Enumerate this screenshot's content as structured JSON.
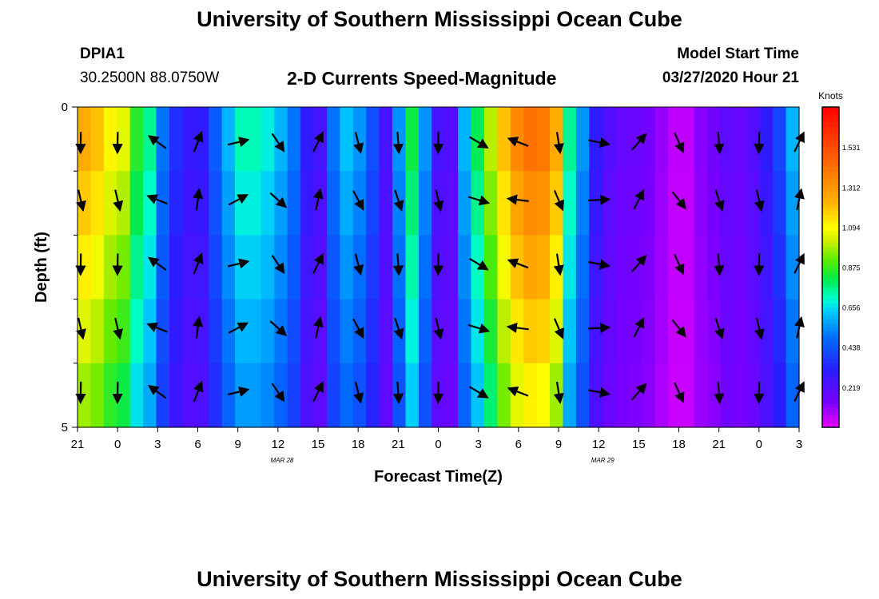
{
  "header": {
    "title_top": "University of Southern Mississippi Ocean Cube",
    "title_bottom": "University of Southern Mississippi Ocean Cube",
    "station_id": "DPIA1",
    "station_coords": "30.2500N 88.0750W",
    "plot_title": "2-D Currents Speed-Magnitude",
    "model_start_label": "Model Start Time",
    "model_start_value": "03/27/2020 Hour 21"
  },
  "chart_data": {
    "type": "heatmap",
    "title": "2-D Currents Speed-Magnitude",
    "xlabel": "Forecast Time(Z)",
    "ylabel": "Depth (ft)",
    "x_ticks": [
      "21",
      "0",
      "3",
      "6",
      "9",
      "12",
      "15",
      "18",
      "21",
      "0",
      "3",
      "6",
      "9",
      "12",
      "15",
      "18",
      "21",
      "0",
      "3"
    ],
    "x_date_labels": [
      {
        "after_tick_index": 5,
        "text": "MAR 28"
      },
      {
        "after_tick_index": 13,
        "text": "MAR 29"
      }
    ],
    "y_ticks": [
      "0",
      "5"
    ],
    "ylim": [
      0,
      5
    ],
    "n_time_steps": 55,
    "hours_per_step": 1,
    "n_depth_layers": 5,
    "speed_profile_knots": [
      1.25,
      1.2,
      1.1,
      1.05,
      0.85,
      0.75,
      0.5,
      0.35,
      0.28,
      0.3,
      0.45,
      0.6,
      0.72,
      0.72,
      0.68,
      0.6,
      0.5,
      0.3,
      0.25,
      0.5,
      0.62,
      0.55,
      0.42,
      0.25,
      0.55,
      0.82,
      0.55,
      0.25,
      0.22,
      0.6,
      0.8,
      1.0,
      1.2,
      1.35,
      1.42,
      1.4,
      1.25,
      0.75,
      0.55,
      0.3,
      0.22,
      0.18,
      0.17,
      0.15,
      0.1,
      0.05,
      0.05,
      0.12,
      0.15,
      0.2,
      0.18,
      0.22,
      0.3,
      0.4,
      0.6
    ],
    "colorbar": {
      "unit": "Knots",
      "ticks": [
        "1.531",
        "1.312",
        "1.094",
        "0.875",
        "0.656",
        "0.438",
        "0.219"
      ],
      "min": 0,
      "max": 1.75
    },
    "vector_columns_hours": [
      0,
      3,
      6,
      9,
      12,
      15,
      18,
      21,
      24,
      27,
      30,
      33,
      36,
      39,
      42,
      45,
      48,
      51,
      54
    ],
    "vector_directions_deg": [
      175,
      175,
      -60,
      15,
      70,
      140,
      20,
      160,
      170,
      175,
      115,
      -75,
      165,
      95,
      35,
      150,
      170,
      175,
      20
    ]
  }
}
